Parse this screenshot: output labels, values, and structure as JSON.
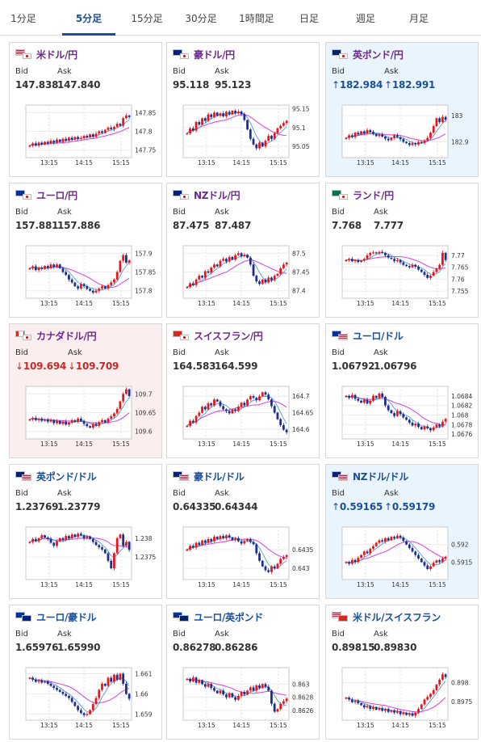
{
  "tabs": [
    {
      "label": "1分足",
      "active": false
    },
    {
      "label": "5分足",
      "active": true
    },
    {
      "label": "15分足",
      "active": false
    },
    {
      "label": "30分足",
      "active": false
    },
    {
      "label": "1時間足",
      "active": false
    },
    {
      "label": "日足",
      "active": false
    },
    {
      "label": "週足",
      "active": false
    },
    {
      "label": "月足",
      "active": false
    }
  ],
  "bid_label": "Bid",
  "ask_label": "Ask",
  "colors": {
    "accent": "#1a4f9c",
    "pair_jpy": "#6d2a8c",
    "up_candle": "#e8161a",
    "down_candle": "#1c2f8e",
    "ma_fast": "#3f92d8",
    "ma_slow": "#d84fe0",
    "highlight_up": "#eaf4fc",
    "highlight_down": "#fbeeee"
  },
  "cards": [
    {
      "name": "米ドル/円",
      "flag": "us-jp",
      "bid": "147.838",
      "ask": "147.840",
      "trend": "none",
      "chart_data": {
        "type": "candlestick",
        "x_ticks": [
          "13:15",
          "14:15",
          "15:15"
        ],
        "y_ticks": [
          "147.85",
          "147.8",
          "147.75"
        ],
        "y_range": [
          147.73,
          147.87
        ],
        "close": [
          147.762,
          147.768,
          147.762,
          147.77,
          147.765,
          147.772,
          147.768,
          147.775,
          147.77,
          147.778,
          147.772,
          147.78,
          147.775,
          147.783,
          147.778,
          147.785,
          147.78,
          147.782,
          147.788,
          147.784,
          147.792,
          147.786,
          147.794,
          147.8,
          147.796,
          147.804,
          147.81,
          147.806,
          147.812,
          147.82,
          147.815,
          147.835,
          147.842,
          147.838
        ]
      }
    },
    {
      "name": "豪ドル/円",
      "flag": "au-jp",
      "bid": "95.118",
      "ask": "95.123",
      "trend": "none",
      "chart_data": {
        "type": "candlestick",
        "x_ticks": [
          "13:15",
          "14:15",
          "15:15"
        ],
        "y_ticks": [
          "95.15",
          "95.1",
          "95.05"
        ],
        "y_range": [
          95.02,
          95.16
        ],
        "close": [
          95.085,
          95.098,
          95.092,
          95.115,
          95.108,
          95.125,
          95.118,
          95.135,
          95.128,
          95.14,
          95.132,
          95.138,
          95.13,
          95.142,
          95.135,
          95.145,
          95.138,
          95.143,
          95.136,
          95.12,
          95.095,
          95.07,
          95.055,
          95.045,
          95.06,
          95.05,
          95.065,
          95.078,
          95.07,
          95.085,
          95.098,
          95.105,
          95.112,
          95.118
        ]
      }
    },
    {
      "name": "英ポンド/円",
      "flag": "gb-jp",
      "bid": "182.984",
      "ask": "182.991",
      "trend": "up",
      "chart_data": {
        "type": "candlestick",
        "x_ticks": [
          "13:15",
          "14:15",
          "15:15"
        ],
        "y_ticks": [
          "183",
          "182.9"
        ],
        "y_range": [
          182.84,
          183.04
        ],
        "close": [
          182.915,
          182.925,
          182.918,
          182.935,
          182.928,
          182.94,
          182.932,
          182.945,
          182.938,
          182.93,
          182.922,
          182.928,
          182.92,
          182.912,
          182.906,
          182.915,
          182.925,
          182.918,
          182.91,
          182.9,
          182.895,
          182.888,
          182.895,
          182.89,
          182.9,
          182.896,
          182.905,
          182.915,
          182.935,
          182.96,
          182.99,
          182.975,
          182.995,
          182.984
        ]
      }
    },
    {
      "name": "ユーロ/円",
      "flag": "eu-jp",
      "bid": "157.881",
      "ask": "157.886",
      "trend": "none",
      "chart_data": {
        "type": "candlestick",
        "x_ticks": [
          "13:15",
          "14:15",
          "15:15"
        ],
        "y_ticks": [
          "157.9",
          "157.85",
          "157.8"
        ],
        "y_range": [
          157.78,
          157.92
        ],
        "close": [
          157.86,
          157.865,
          157.855,
          157.862,
          157.858,
          157.866,
          157.86,
          157.87,
          157.864,
          157.87,
          157.86,
          157.85,
          157.842,
          157.83,
          157.822,
          157.812,
          157.806,
          157.818,
          157.812,
          157.805,
          157.8,
          157.795,
          157.8,
          157.806,
          157.812,
          157.806,
          157.815,
          157.822,
          157.83,
          157.85,
          157.88,
          157.895,
          157.875,
          157.881
        ]
      }
    },
    {
      "name": "NZドル/円",
      "flag": "nz-jp",
      "bid": "87.475",
      "ask": "87.487",
      "trend": "none",
      "chart_data": {
        "type": "candlestick",
        "x_ticks": [
          "13:15",
          "14:15",
          "15:15"
        ],
        "y_ticks": [
          "87.5",
          "87.45",
          "87.4"
        ],
        "y_range": [
          87.38,
          87.52
        ],
        "close": [
          87.41,
          87.42,
          87.415,
          87.43,
          87.44,
          87.435,
          87.452,
          87.448,
          87.462,
          87.47,
          87.465,
          87.48,
          87.485,
          87.478,
          87.49,
          87.483,
          87.495,
          87.5,
          87.492,
          87.496,
          87.488,
          87.47,
          87.44,
          87.425,
          87.418,
          87.43,
          87.422,
          87.435,
          87.428,
          87.44,
          87.445,
          87.46,
          87.47,
          87.475
        ]
      }
    },
    {
      "name": "ランド/円",
      "flag": "za-jp",
      "bid": "7.768",
      "ask": "7.777",
      "trend": "none",
      "chart_data": {
        "type": "candlestick",
        "x_ticks": [
          "13:15",
          "14:15",
          "15:15"
        ],
        "y_ticks": [
          "7.77",
          "7.765",
          "7.76",
          "7.755"
        ],
        "y_range": [
          7.752,
          7.774
        ],
        "close": [
          7.768,
          7.7685,
          7.7675,
          7.768,
          7.7672,
          7.7678,
          7.7685,
          7.77,
          7.771,
          7.7712,
          7.7708,
          7.7714,
          7.771,
          7.77,
          7.769,
          7.7685,
          7.7675,
          7.768,
          7.767,
          7.766,
          7.7655,
          7.765,
          7.766,
          7.7652,
          7.764,
          7.763,
          7.7618,
          7.7605,
          7.7615,
          7.763,
          7.7645,
          7.766,
          7.771,
          7.768
        ]
      }
    },
    {
      "name": "カナダドル/円",
      "flag": "ca-jp",
      "bid": "109.694",
      "ask": "109.709",
      "trend": "down",
      "chart_data": {
        "type": "candlestick",
        "x_ticks": [
          "13:15",
          "14:15",
          "15:15"
        ],
        "y_ticks": [
          "109.7",
          "109.65",
          "109.6"
        ],
        "y_range": [
          109.58,
          109.72
        ],
        "close": [
          109.632,
          109.636,
          109.63,
          109.634,
          109.628,
          109.632,
          109.626,
          109.63,
          109.622,
          109.628,
          109.62,
          109.626,
          109.618,
          109.624,
          109.63,
          109.626,
          109.634,
          109.628,
          109.62,
          109.614,
          109.61,
          109.62,
          109.615,
          109.625,
          109.63,
          109.624,
          109.634,
          109.64,
          109.648,
          109.66,
          109.68,
          109.7,
          109.712,
          109.694
        ]
      }
    },
    {
      "name": "スイスフラン/円",
      "flag": "ch-jp",
      "bid": "164.583",
      "ask": "164.599",
      "trend": "none",
      "chart_data": {
        "type": "candlestick",
        "x_ticks": [
          "13:15",
          "14:15",
          "15:15"
        ],
        "y_ticks": [
          "164.7",
          "164.65",
          "164.6"
        ],
        "y_range": [
          164.57,
          164.73
        ],
        "close": [
          164.61,
          164.625,
          164.62,
          164.64,
          164.65,
          164.668,
          164.66,
          164.678,
          164.672,
          164.69,
          164.684,
          164.67,
          164.66,
          164.655,
          164.648,
          164.66,
          164.655,
          164.668,
          164.68,
          164.672,
          164.69,
          164.7,
          164.695,
          164.688,
          164.7,
          164.712,
          164.705,
          164.69,
          164.67,
          164.65,
          164.63,
          164.612,
          164.598,
          164.59
        ]
      }
    },
    {
      "name": "ユーロ/ドル",
      "flag": "eu-us",
      "bid": "1.06792",
      "ask": "1.06796",
      "trend": "none",
      "chart_data": {
        "type": "candlestick",
        "x_ticks": [
          "13:15",
          "14:15",
          "15:15"
        ],
        "y_ticks": [
          "1.0684",
          "1.0682",
          "1.068",
          "1.0678",
          "1.0676"
        ],
        "y_range": [
          1.0675,
          1.0686
        ],
        "close": [
          1.0684,
          1.06836,
          1.06842,
          1.06834,
          1.0683,
          1.06826,
          1.06832,
          1.06824,
          1.0683,
          1.0684,
          1.06836,
          1.06845,
          1.06838,
          1.0682,
          1.0681,
          1.06804,
          1.06798,
          1.06808,
          1.06802,
          1.06795,
          1.0679,
          1.06784,
          1.06778,
          1.06782,
          1.06775,
          1.0677,
          1.06776,
          1.06772,
          1.06768,
          1.06774,
          1.0678,
          1.06776,
          1.06786,
          1.06792
        ]
      }
    },
    {
      "name": "英ポンド/ドル",
      "flag": "gb-us",
      "bid": "1.23769",
      "ask": "1.23779",
      "trend": "none",
      "chart_data": {
        "type": "candlestick",
        "x_ticks": [
          "13:15",
          "14:15",
          "15:15"
        ],
        "y_ticks": [
          "1.238",
          "1.2375"
        ],
        "y_range": [
          1.2369,
          1.2383
        ],
        "close": [
          1.2379,
          1.23798,
          1.23792,
          1.238,
          1.23808,
          1.23802,
          1.23798,
          1.23788,
          1.2378,
          1.23792,
          1.238,
          1.23795,
          1.23806,
          1.238,
          1.2381,
          1.23804,
          1.23812,
          1.23808,
          1.238,
          1.23805,
          1.23798,
          1.2379,
          1.23782,
          1.23776,
          1.2377,
          1.2376,
          1.2374,
          1.2372,
          1.2376,
          1.238,
          1.2381,
          1.2378,
          1.2379,
          1.23769
        ]
      }
    },
    {
      "name": "豪ドル/ドル",
      "flag": "au-us",
      "bid": "0.64335",
      "ask": "0.64344",
      "trend": "none",
      "chart_data": {
        "type": "candlestick",
        "x_ticks": [
          "13:15",
          "14:15",
          "15:15"
        ],
        "y_ticks": [
          "0.6435",
          "0.643"
        ],
        "y_range": [
          0.6427,
          0.6441
        ],
        "close": [
          0.6435,
          0.6436,
          0.64355,
          0.64368,
          0.64362,
          0.64374,
          0.64368,
          0.64378,
          0.64372,
          0.64384,
          0.64378,
          0.64386,
          0.6438,
          0.64388,
          0.64382,
          0.64375,
          0.6438,
          0.64372,
          0.64366,
          0.64372,
          0.64378,
          0.6437,
          0.64364,
          0.6434,
          0.6432,
          0.64305,
          0.64295,
          0.6429,
          0.64305,
          0.643,
          0.64312,
          0.64325,
          0.6433,
          0.64335
        ]
      }
    },
    {
      "name": "NZドル/ドル",
      "flag": "nz-us",
      "bid": "0.59165",
      "ask": "0.59179",
      "trend": "up",
      "chart_data": {
        "type": "candlestick",
        "x_ticks": [
          "13:15",
          "14:15",
          "15:15"
        ],
        "y_ticks": [
          "0.592",
          "0.5915"
        ],
        "y_range": [
          0.591,
          0.5925
        ],
        "close": [
          0.5915,
          0.59145,
          0.59156,
          0.5915,
          0.59162,
          0.5917,
          0.5918,
          0.59175,
          0.59188,
          0.59195,
          0.59205,
          0.59212,
          0.59208,
          0.59218,
          0.59212,
          0.59222,
          0.59218,
          0.59225,
          0.5922,
          0.5921,
          0.592,
          0.5919,
          0.5918,
          0.5917,
          0.5916,
          0.5915,
          0.5914,
          0.5913,
          0.59138,
          0.59148,
          0.59155,
          0.5915,
          0.5916,
          0.59165
        ]
      }
    },
    {
      "name": "ユーロ/豪ドル",
      "flag": "eu-au",
      "bid": "1.65976",
      "ask": "1.65990",
      "trend": "none",
      "chart_data": {
        "type": "candlestick",
        "x_ticks": [
          "13:15",
          "14:15",
          "15:15"
        ],
        "y_ticks": [
          "1.661",
          "1.66",
          "1.659"
        ],
        "y_range": [
          1.6587,
          1.6613
        ],
        "close": [
          1.6608,
          1.6607,
          1.6606,
          1.66068,
          1.66056,
          1.66062,
          1.6605,
          1.6604,
          1.6603,
          1.6602,
          1.6601,
          1.66,
          1.6599,
          1.6598,
          1.6596,
          1.6594,
          1.6592,
          1.65905,
          1.65895,
          1.659,
          1.6592,
          1.6595,
          1.6598,
          1.6602,
          1.6605,
          1.6604,
          1.6608,
          1.6606,
          1.66095,
          1.6607,
          1.661,
          1.6605,
          1.66,
          1.65976
        ]
      }
    },
    {
      "name": "ユーロ/英ポンド",
      "flag": "eu-gb",
      "bid": "0.86278",
      "ask": "0.86286",
      "trend": "none",
      "chart_data": {
        "type": "candlestick",
        "x_ticks": [
          "13:15",
          "14:15",
          "15:15"
        ],
        "y_ticks": [
          "0.863",
          "0.8628",
          "0.8626"
        ],
        "y_range": [
          0.86245,
          0.86325
        ],
        "close": [
          0.86308,
          0.86304,
          0.8631,
          0.86302,
          0.86306,
          0.863,
          0.86296,
          0.863,
          0.86294,
          0.8629,
          0.86286,
          0.8629,
          0.86284,
          0.8628,
          0.86286,
          0.8628,
          0.86276,
          0.86282,
          0.86288,
          0.86284,
          0.8629,
          0.86295,
          0.8629,
          0.86298,
          0.86294,
          0.863,
          0.86296,
          0.8629,
          0.8627,
          0.86258,
          0.86262,
          0.8627,
          0.86274,
          0.86278
        ]
      }
    },
    {
      "name": "米ドル/スイスフラン",
      "flag": "us-ch",
      "bid": "0.89815",
      "ask": "0.89830",
      "trend": "none",
      "chart_data": {
        "type": "candlestick",
        "x_ticks": [
          "13:15",
          "14:15",
          "15:15"
        ],
        "y_ticks": [
          "0.898",
          "0.8975"
        ],
        "y_range": [
          0.897,
          0.8984
        ],
        "close": [
          0.8976,
          0.89755,
          0.89748,
          0.89752,
          0.89745,
          0.8974,
          0.89734,
          0.89738,
          0.8973,
          0.89735,
          0.89728,
          0.89732,
          0.89725,
          0.8973,
          0.89722,
          0.89726,
          0.8972,
          0.89724,
          0.89716,
          0.8972,
          0.89714,
          0.89718,
          0.89712,
          0.8972,
          0.8973,
          0.89742,
          0.89755,
          0.89762,
          0.8977,
          0.8978,
          0.89795,
          0.89808,
          0.89822,
          0.89815
        ]
      }
    }
  ]
}
